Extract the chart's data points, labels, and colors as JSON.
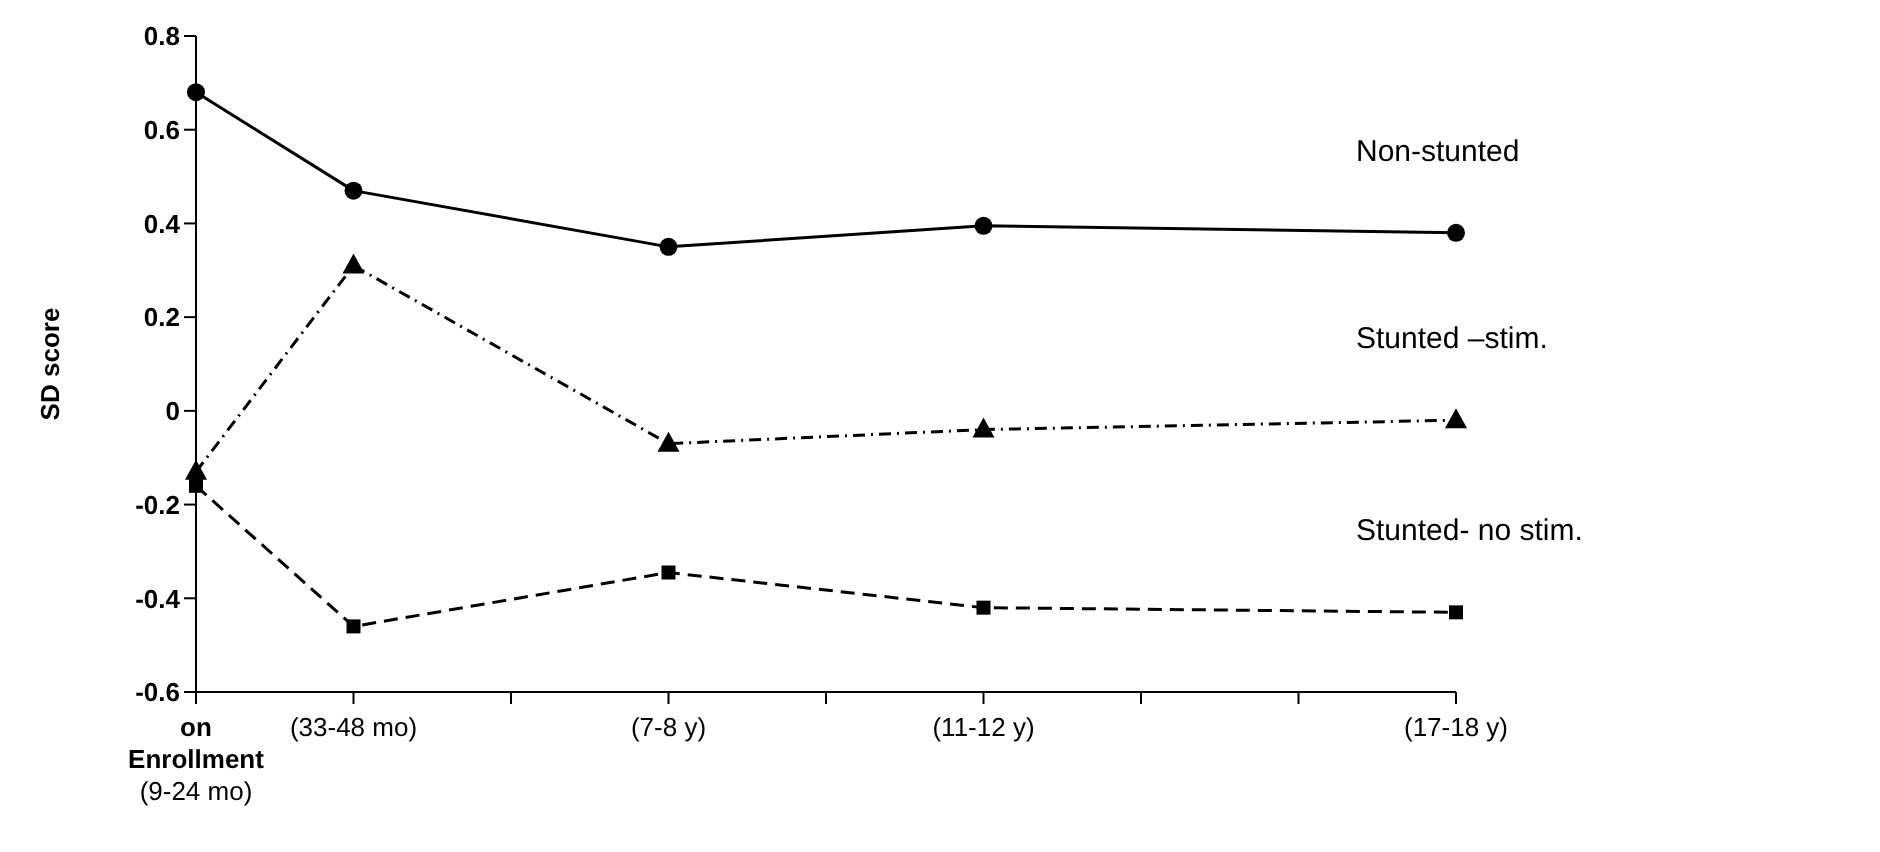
{
  "chart_data": {
    "type": "line",
    "ylabel": "SD score",
    "categories": [
      "on Enrollment (9-24 mo)",
      "(33-48 mo)",
      null,
      "(7-8 y)",
      null,
      "(11-12 y)",
      null,
      null,
      "(17-18 y)"
    ],
    "ylim": [
      -0.6,
      0.8
    ],
    "yticks": [
      -0.6,
      -0.4,
      -0.2,
      0,
      0.2,
      0.4,
      0.6,
      0.8
    ],
    "grid": false,
    "legend": false,
    "series": [
      {
        "name": "Non-stunted",
        "color": "#000000",
        "marker": "circle",
        "line_style": "solid",
        "values": [
          0.68,
          0.47,
          null,
          0.35,
          null,
          0.395,
          null,
          null,
          0.38
        ]
      },
      {
        "name": "Stunted –stim.",
        "color": "#000000",
        "marker": "triangle",
        "line_style": "dotted",
        "values": [
          -0.13,
          0.31,
          null,
          -0.07,
          null,
          -0.04,
          null,
          null,
          -0.02
        ]
      },
      {
        "name": "Stunted- no stim.",
        "color": "#000000",
        "marker": "square",
        "line_style": "dashed",
        "values": [
          -0.16,
          -0.46,
          null,
          -0.345,
          null,
          -0.42,
          null,
          null,
          -0.43
        ]
      }
    ]
  }
}
